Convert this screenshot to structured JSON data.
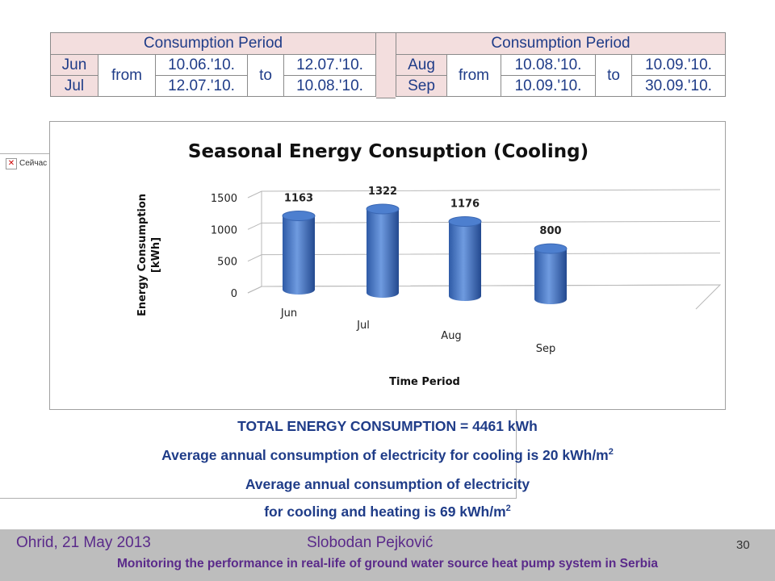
{
  "period_table": {
    "header": "Consumption Period",
    "from_label": "from",
    "to_label": "to",
    "left_rows": [
      {
        "month": "Jun",
        "from": "10.06.'10.",
        "to": "12.07.'10."
      },
      {
        "month": "Jul",
        "from": "12.07.'10.",
        "to": "10.08.'10."
      }
    ],
    "right_rows": [
      {
        "month": "Aug",
        "from": "10.08.'10.",
        "to": "10.09.'10."
      },
      {
        "month": "Sep",
        "from": "10.09.'10.",
        "to": "30.09.'10."
      }
    ]
  },
  "broken_image": {
    "icon": "close-icon",
    "text": "Сейчас"
  },
  "chart_data": {
    "type": "bar",
    "title": "Seasonal Energy Consuption (Cooling)",
    "xlabel": "Time Period",
    "ylabel": "Energy Consumption [kWh]",
    "categories": [
      "Jun",
      "Jul",
      "Aug",
      "Sep"
    ],
    "values": [
      1163,
      1322,
      1176,
      800
    ],
    "data_labels": [
      "1163",
      "1322",
      "1176",
      "800"
    ],
    "yticks": [
      0,
      500,
      1000,
      1500
    ],
    "ylim": [
      0,
      1500
    ],
    "bar_color": "#3f6fc0",
    "style": "3d-cylinder",
    "grid": true,
    "legend": "none"
  },
  "summary": {
    "total": "TOTAL ENERGY CONSUMPTION = 4461 kWh",
    "line2": "Average annual consumption of electricity for cooling is 20 kWh/m",
    "line2_sup": "2",
    "line3": "Average annual consumption of electricity",
    "line4": "for cooling and heating  is 69 kWh/m",
    "line4_sup": "2"
  },
  "footer": {
    "location_date": "Ohrid, 21 May 2013",
    "author": "Slobodan Pejković",
    "page": "30",
    "title": "Monitoring the performance in real-life of ground water source heat pump system in Serbia"
  }
}
